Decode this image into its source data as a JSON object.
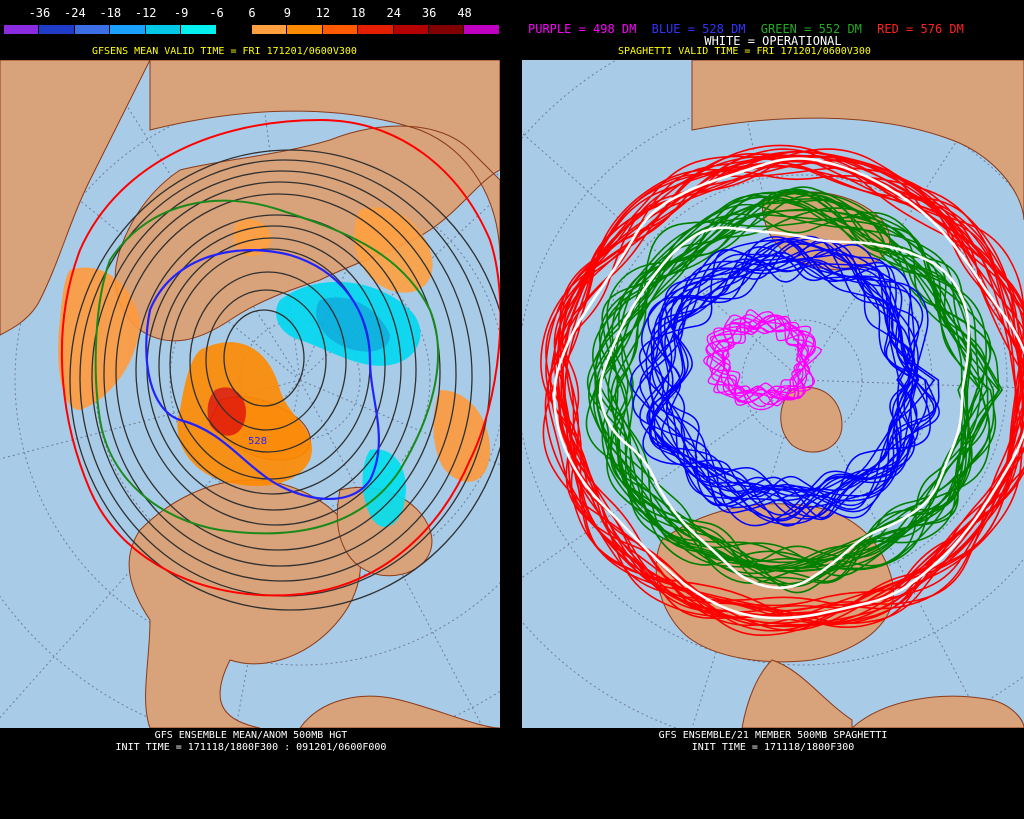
{
  "colorbar": {
    "ticks": [
      "-36",
      "-24",
      "-18",
      "-12",
      "-9",
      "-6",
      "6",
      "9",
      "12",
      "18",
      "24",
      "36",
      "48"
    ],
    "colors": [
      "#8a2be2",
      "#1e3cc8",
      "#3c6ee6",
      "#1aa0ff",
      "#00c8e6",
      "#00f0f0",
      "#000000",
      "#ffa040",
      "#ff8a00",
      "#ff5a00",
      "#e61e00",
      "#b40000",
      "#800000",
      "#c000c0"
    ]
  },
  "left": {
    "title": "GFSENS MEAN VALID TIME = FRI 171201/0600V300",
    "footer_line1": "GFS ENSEMBLE MEAN/ANOM 500MB HGT",
    "footer_line2": "INIT TIME = 171118/1800F300 : 091201/0600F000",
    "contour_label": "528"
  },
  "right": {
    "legend_purple": "PURPLE = 498 DM",
    "legend_blue": "BLUE = 528 DM",
    "legend_green": "GREEN = 552 DM",
    "legend_red": "RED = 576 DM",
    "legend_white": "WHITE = OPERATIONAL",
    "title": "SPAGHETTI VALID TIME = FRI 171201/0600V300",
    "footer_line1": "GFS ENSEMBLE/21 MEMBER 500MB SPAGHETTI",
    "footer_line2": "INIT TIME = 171118/1800F300"
  },
  "colors": {
    "ocean": "#a8cce8",
    "land": "#d8a27a",
    "border": "#8b3a1a",
    "purple": "#ff00ff",
    "blue": "#0000ff",
    "green": "#008000",
    "red": "#ff0000",
    "white": "#ffffff"
  }
}
